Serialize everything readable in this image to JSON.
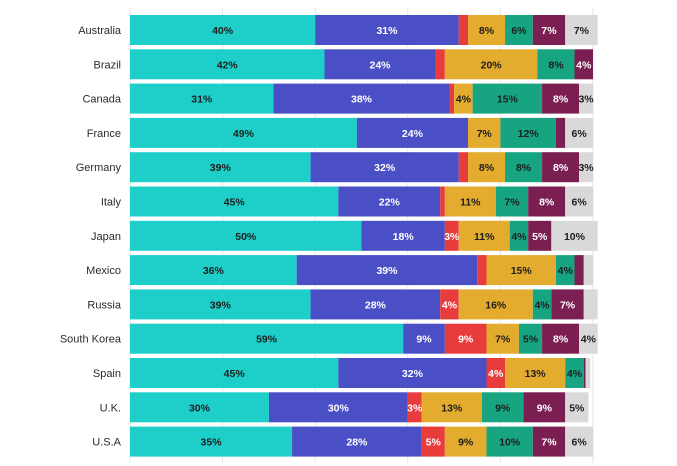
{
  "chart_data": {
    "type": "bar",
    "orientation": "horizontal",
    "stacked": true,
    "title": "",
    "xlabel": "",
    "ylabel": "",
    "xlim": [
      0,
      100
    ],
    "grid": true,
    "legend": "none",
    "categories": [
      "Australia",
      "Brazil",
      "Canada",
      "France",
      "Germany",
      "Italy",
      "Japan",
      "Mexico",
      "Russia",
      "South Korea",
      "Spain",
      "U.K.",
      "U.S.A"
    ],
    "series": [
      {
        "color": "#1ecfc9",
        "values": [
          40,
          42,
          31,
          49,
          39,
          45,
          50,
          36,
          39,
          59,
          45,
          30,
          35
        ],
        "labels": [
          "40%",
          "42%",
          "31%",
          "49%",
          "39%",
          "45%",
          "50%",
          "36%",
          "39%",
          "59%",
          "45%",
          "30%",
          "35%"
        ]
      },
      {
        "color": "#4a4fc6",
        "values": [
          31,
          24,
          38,
          24,
          32,
          22,
          18,
          39,
          28,
          9,
          32,
          30,
          28
        ],
        "labels": [
          "31%",
          "24%",
          "38%",
          "24%",
          "32%",
          "22%",
          "18%",
          "39%",
          "28%",
          "9%",
          "32%",
          "30%",
          "28%"
        ]
      },
      {
        "color": "#e83b3b",
        "values": [
          2,
          2,
          1,
          0,
          2,
          1,
          3,
          2,
          4,
          9,
          4,
          3,
          5
        ],
        "labels": [
          "",
          "",
          "",
          "",
          "",
          "",
          "3%",
          "",
          "4%",
          "9%",
          "4%",
          "3%",
          "5%"
        ]
      },
      {
        "color": "#e3ac2e",
        "values": [
          8,
          20,
          4,
          7,
          8,
          11,
          11,
          15,
          16,
          7,
          13,
          13,
          9
        ],
        "labels": [
          "8%",
          "20%",
          "4%",
          "7%",
          "8%",
          "11%",
          "11%",
          "15%",
          "16%",
          "7%",
          "13%",
          "13%",
          "9%"
        ]
      },
      {
        "color": "#17a581",
        "values": [
          6,
          8,
          15,
          12,
          8,
          7,
          4,
          4,
          4,
          5,
          4,
          9,
          10
        ],
        "labels": [
          "6%",
          "8%",
          "15%",
          "12%",
          "8%",
          "7%",
          "4%",
          "4%",
          "4%",
          "5%",
          "4%",
          "9%",
          "10%"
        ]
      },
      {
        "color": "#7b1e52",
        "values": [
          7,
          4,
          8,
          2,
          8,
          8,
          5,
          2,
          7,
          8,
          0.4,
          9,
          7
        ],
        "labels": [
          "7%",
          "4%",
          "8%",
          "",
          "8%",
          "8%",
          "5%",
          "",
          "7%",
          "8%",
          "",
          "9%",
          "7%"
        ]
      },
      {
        "color": "#d9d9d9",
        "values": [
          7,
          0,
          3,
          6,
          3,
          6,
          10,
          2,
          3,
          4,
          1,
          5,
          6
        ],
        "labels": [
          "7%",
          "",
          "3%",
          "6%",
          "3%",
          "6%",
          "10%",
          "",
          "",
          "4%",
          "",
          "5%",
          "6%"
        ]
      }
    ]
  }
}
